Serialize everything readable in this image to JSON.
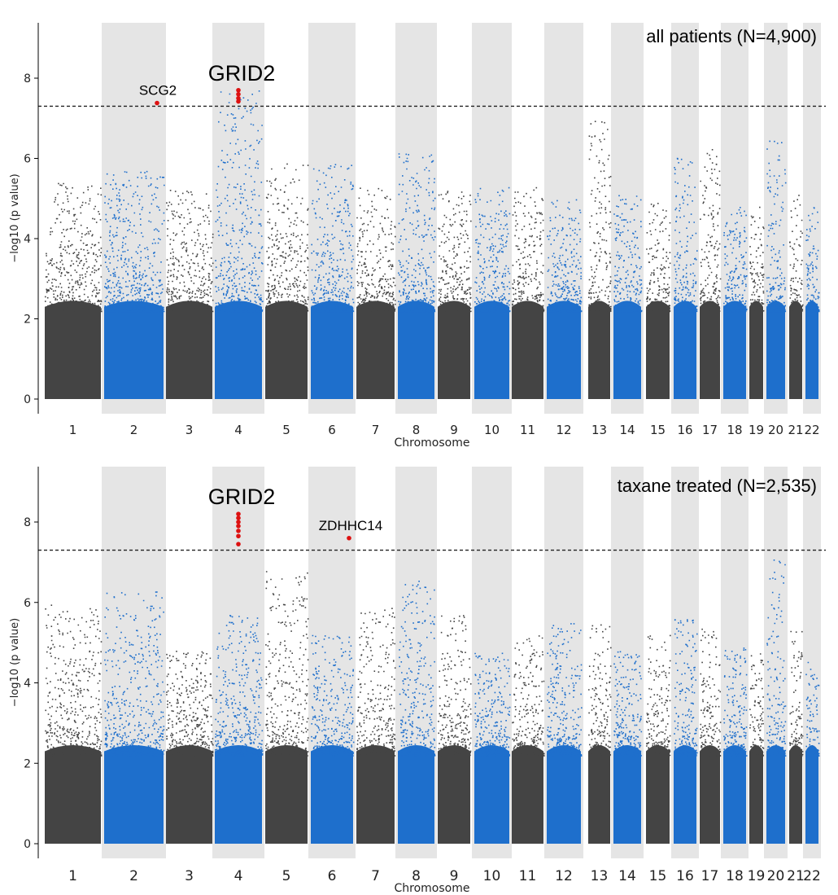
{
  "colors": {
    "dark": "#444444",
    "blue": "#1e6fcc",
    "hit": "#dd1111",
    "shade": "#e5e5e5",
    "threshold": "#222222"
  },
  "chart_data": [
    {
      "type": "scatter",
      "title": "all patients (N=4,900)",
      "xlabel": "Chromosome",
      "ylabel": "−log10 (p value)",
      "ylim": [
        -0.3,
        9.5
      ],
      "yticks": [
        0,
        2,
        4,
        6,
        8
      ],
      "threshold": 7.3,
      "chromosomes": [
        "1",
        "2",
        "3",
        "4",
        "5",
        "6",
        "7",
        "8",
        "9",
        "10",
        "11",
        "12",
        "13",
        "14",
        "15",
        "16",
        "17",
        "18",
        "19",
        "20",
        "21",
        "22"
      ],
      "peak_heights": [
        5.4,
        5.7,
        5.3,
        7.7,
        5.9,
        5.9,
        5.3,
        6.2,
        5.2,
        5.3,
        5.3,
        5.0,
        7.15,
        5.1,
        4.9,
        6.1,
        6.3,
        4.8,
        4.8,
        6.5,
        5.1,
        4.8
      ],
      "hits": [
        {
          "chrom": "2",
          "gene": "SCG2",
          "values": [
            7.38
          ]
        },
        {
          "chrom": "4",
          "gene": "GRID2",
          "values": [
            7.42,
            7.5,
            7.6,
            7.7
          ]
        }
      ]
    },
    {
      "type": "scatter",
      "title": "taxane treated (N=2,535)",
      "xlabel": "Chromosome",
      "ylabel": "−log10 (p value)",
      "ylim": [
        -0.3,
        9.5
      ],
      "yticks": [
        0,
        2,
        4,
        6,
        8
      ],
      "threshold": 7.3,
      "chromosomes": [
        "1",
        "2",
        "3",
        "4",
        "5",
        "6",
        "7",
        "8",
        "9",
        "10",
        "11",
        "12",
        "13",
        "14",
        "15",
        "16",
        "17",
        "18",
        "19",
        "20",
        "21",
        "22"
      ],
      "peak_heights": [
        5.95,
        6.3,
        4.8,
        5.7,
        6.8,
        5.2,
        5.9,
        6.55,
        5.7,
        4.8,
        5.2,
        5.5,
        5.7,
        4.8,
        5.2,
        5.6,
        5.4,
        4.9,
        4.9,
        7.1,
        5.3,
        4.6
      ],
      "hits": [
        {
          "chrom": "4",
          "gene": "GRID2",
          "values": [
            7.45,
            7.65,
            7.78,
            7.9,
            8.0,
            8.1,
            8.2
          ]
        },
        {
          "chrom": "6",
          "gene": "ZDHHC14",
          "values": [
            7.6
          ]
        }
      ]
    }
  ]
}
